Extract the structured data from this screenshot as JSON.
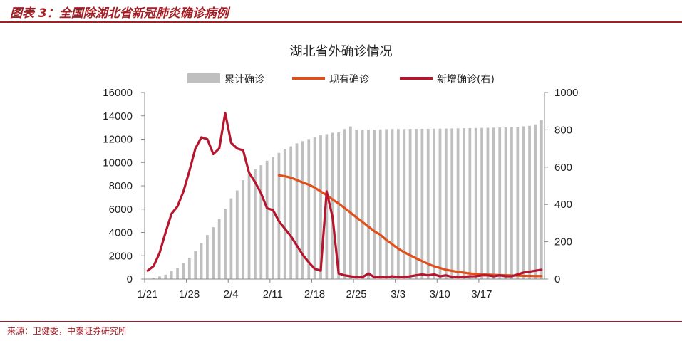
{
  "figure_title": "图表 3：全国除湖北省新冠肺炎确诊病例",
  "source": "来源：卫健委，中泰证券研究所",
  "colors": {
    "accent": "#a31d24",
    "bars": "#bfbfbf",
    "current": "#e0501b",
    "new": "#b5152d"
  },
  "chart_data": {
    "type": "bar+line",
    "title": "湖北省外确诊情况",
    "legend": [
      "累计确诊",
      "现有确诊",
      "新增确诊(右)"
    ],
    "legend_position": "top",
    "x_ticks": [
      "1/21",
      "1/28",
      "2/4",
      "2/11",
      "2/18",
      "2/25",
      "3/3",
      "3/10",
      "3/17"
    ],
    "y_left_ticks": [
      "0",
      "2000",
      "4000",
      "6000",
      "8000",
      "10000",
      "12000",
      "14000",
      "16000"
    ],
    "y_right_ticks": [
      "0",
      "200",
      "400",
      "600",
      "800",
      "1000"
    ],
    "ylim_left": [
      0,
      16000
    ],
    "ylim_right": [
      0,
      1000
    ],
    "dates_start": "1/21",
    "cumulative": [
      20,
      80,
      230,
      380,
      700,
      980,
      1370,
      1770,
      2390,
      3080,
      3780,
      4450,
      5150,
      6030,
      6920,
      7600,
      8480,
      9030,
      9420,
      9760,
      10150,
      10470,
      10820,
      11150,
      11380,
      11640,
      11830,
      12010,
      12180,
      12330,
      12430,
      12550,
      12580,
      12870,
      13090,
      12790,
      12790,
      12800,
      12820,
      12840,
      12860,
      12870,
      12870,
      12870,
      12880,
      12880,
      12890,
      12890,
      12900,
      12900,
      12910,
      12920,
      12930,
      12940,
      12950,
      12960,
      12970,
      12980,
      12990,
      13000,
      13010,
      13040,
      13060,
      13100,
      13140,
      13270,
      13640
    ],
    "current": [
      null,
      null,
      null,
      null,
      null,
      null,
      null,
      null,
      null,
      null,
      null,
      null,
      null,
      null,
      null,
      null,
      null,
      null,
      null,
      null,
      null,
      null,
      8900,
      8820,
      8700,
      8500,
      8280,
      8100,
      7840,
      7520,
      7200,
      6820,
      6480,
      6100,
      5700,
      5280,
      4900,
      4500,
      4100,
      3800,
      3350,
      2980,
      2600,
      2300,
      2040,
      1780,
      1540,
      1300,
      1100,
      950,
      800,
      700,
      620,
      550,
      480,
      440,
      400,
      380,
      360,
      340,
      330,
      310,
      300,
      280,
      270,
      260,
      260
    ],
    "new": [
      45,
      70,
      140,
      250,
      350,
      390,
      470,
      580,
      700,
      760,
      750,
      670,
      700,
      890,
      730,
      700,
      690,
      570,
      520,
      460,
      380,
      370,
      310,
      270,
      230,
      180,
      130,
      90,
      55,
      45,
      470,
      330,
      30,
      20,
      15,
      10,
      10,
      30,
      10,
      10,
      10,
      15,
      10,
      10,
      15,
      20,
      25,
      20,
      25,
      15,
      20,
      12,
      10,
      12,
      15,
      15,
      20,
      20,
      15,
      20,
      15,
      15,
      25,
      35,
      40,
      45,
      50
    ]
  }
}
